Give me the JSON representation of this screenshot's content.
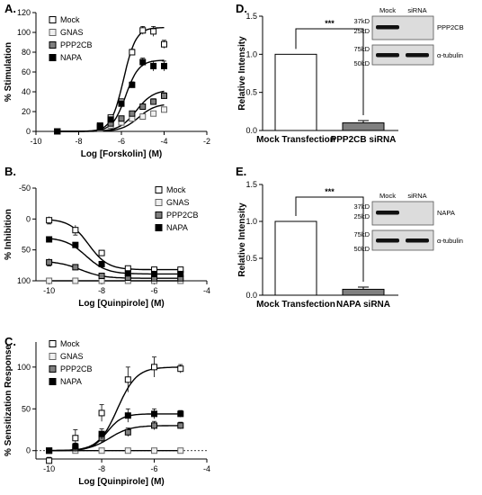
{
  "panels": {
    "A": {
      "label": "A."
    },
    "B": {
      "label": "B."
    },
    "C": {
      "label": "C."
    },
    "D": {
      "label": "D."
    },
    "E": {
      "label": "E."
    }
  },
  "chart_data": [
    {
      "id": "A",
      "type": "scatter",
      "curve": "sigmoidal fit",
      "xlabel": "Log [Forskolin] (M)",
      "ylabel": "% Stimulation",
      "xlim": [
        -10,
        -2
      ],
      "ylim": [
        0,
        120
      ],
      "xticks": [
        -10,
        -8,
        -6,
        -4,
        -2
      ],
      "yticks": [
        0,
        20,
        40,
        60,
        80,
        100,
        120
      ],
      "legend_position": "top-left",
      "x": [
        -9,
        -7,
        -6.5,
        -6,
        -5.5,
        -5,
        -4.5,
        -4
      ],
      "series": [
        {
          "name": "Mock",
          "marker": "open",
          "color": "#ffffff",
          "values": [
            0,
            6,
            14,
            30,
            80,
            102,
            101,
            88
          ],
          "err": [
            0,
            1,
            2,
            3,
            3,
            4,
            5,
            4
          ],
          "fit": {
            "bottom": 0,
            "top": 105,
            "logEC50": -5.9,
            "hill": 1.5
          }
        },
        {
          "name": "GNAS",
          "marker": "open-light",
          "color": "#f0f0f0",
          "values": [
            0,
            3,
            6,
            9,
            13,
            15,
            18,
            22
          ],
          "err": [
            0,
            1,
            1,
            1,
            2,
            2,
            2,
            2
          ],
          "fit": {
            "bottom": 0,
            "top": 28,
            "logEC50": -5.2,
            "hill": 1.1
          }
        },
        {
          "name": "PPP2CB",
          "marker": "gray",
          "color": "#7f7f7f",
          "values": [
            0,
            4,
            8,
            13,
            18,
            25,
            30,
            36
          ],
          "err": [
            0,
            1,
            1,
            2,
            2,
            2,
            3,
            3
          ],
          "fit": {
            "bottom": 0,
            "top": 42,
            "logEC50": -5.3,
            "hill": 1.1
          }
        },
        {
          "name": "NAPA",
          "marker": "black",
          "color": "#000000",
          "values": [
            0,
            5,
            12,
            28,
            47,
            70,
            66,
            66
          ],
          "err": [
            0,
            1,
            2,
            3,
            3,
            4,
            5,
            5
          ],
          "fit": {
            "bottom": 0,
            "top": 72,
            "logEC50": -5.8,
            "hill": 1.4
          }
        }
      ]
    },
    {
      "id": "B",
      "type": "scatter",
      "curve": "sigmoidal fit",
      "xlabel": "Log [Quinpirole] (M)",
      "ylabel": "% Inhibition",
      "xlim": [
        -10.5,
        -4
      ],
      "ylim": [
        -50,
        100
      ],
      "y_inverted": true,
      "reference_line": 100,
      "xticks": [
        -10,
        -8,
        -6,
        -4
      ],
      "yticks": [
        -50,
        0,
        50,
        100
      ],
      "legend_position": "top-right",
      "x": [
        -10,
        -9,
        -8,
        -7,
        -6,
        -5
      ],
      "series": [
        {
          "name": "Mock",
          "marker": "open",
          "color": "#ffffff",
          "values": [
            2,
            18,
            55,
            80,
            82,
            82
          ],
          "err": [
            6,
            8,
            4,
            3,
            2,
            2
          ],
          "fit": {
            "bottom": 0,
            "top": 82,
            "logEC50": -8.5,
            "hill": 1.2
          }
        },
        {
          "name": "GNAS",
          "marker": "open-light",
          "color": "#f0f0f0",
          "values": [
            100,
            100,
            100,
            100,
            100,
            100
          ],
          "err": [
            1,
            1,
            1,
            1,
            1,
            1
          ],
          "fit": {
            "bottom": 100,
            "top": 100,
            "logEC50": -8,
            "hill": 1
          }
        },
        {
          "name": "PPP2CB",
          "marker": "gray",
          "color": "#7f7f7f",
          "values": [
            70,
            78,
            92,
            95,
            96,
            96
          ],
          "err": [
            6,
            4,
            3,
            2,
            2,
            2
          ],
          "fit": {
            "bottom": 68,
            "top": 96,
            "logEC50": -8.8,
            "hill": 1
          }
        },
        {
          "name": "NAPA",
          "marker": "black",
          "color": "#000000",
          "values": [
            33,
            42,
            73,
            88,
            89,
            89
          ],
          "err": [
            3,
            3,
            3,
            2,
            2,
            2
          ],
          "fit": {
            "bottom": 30,
            "top": 89,
            "logEC50": -8.6,
            "hill": 1.1
          }
        }
      ]
    },
    {
      "id": "C",
      "type": "scatter",
      "curve": "sigmoidal fit",
      "xlabel": "Log [Quinpirole] (M)",
      "ylabel": "% Sensitization Response",
      "xlim": [
        -10.5,
        -4
      ],
      "ylim": [
        -10,
        130
      ],
      "reference_line": 0,
      "xticks": [
        -10,
        -8,
        -6,
        -4
      ],
      "yticks": [
        0,
        50,
        100
      ],
      "legend_position": "top-left",
      "x": [
        -10,
        -9,
        -8,
        -7,
        -6,
        -5
      ],
      "series": [
        {
          "name": "Mock",
          "marker": "open",
          "color": "#ffffff",
          "values": [
            -12,
            15,
            45,
            85,
            100,
            98
          ],
          "err": [
            4,
            10,
            10,
            15,
            12,
            5
          ],
          "fit": {
            "bottom": 0,
            "top": 100,
            "logEC50": -7.4,
            "hill": 1.2
          }
        },
        {
          "name": "GNAS",
          "marker": "open-light",
          "color": "#f0f0f0",
          "values": [
            0,
            0,
            0,
            0,
            0,
            0
          ],
          "err": [
            1,
            1,
            1,
            1,
            1,
            1
          ],
          "fit": {
            "bottom": 0,
            "top": 0,
            "logEC50": -8,
            "hill": 1
          }
        },
        {
          "name": "PPP2CB",
          "marker": "gray",
          "color": "#7f7f7f",
          "values": [
            0,
            3,
            15,
            22,
            30,
            30
          ],
          "err": [
            2,
            4,
            5,
            5,
            5,
            4
          ],
          "fit": {
            "bottom": 0,
            "top": 30,
            "logEC50": -7.7,
            "hill": 1.1
          }
        },
        {
          "name": "NAPA",
          "marker": "black",
          "color": "#000000",
          "values": [
            0,
            5,
            20,
            42,
            44,
            44
          ],
          "err": [
            2,
            4,
            6,
            8,
            6,
            4
          ],
          "fit": {
            "bottom": 0,
            "top": 44,
            "logEC50": -7.8,
            "hill": 1.5
          }
        }
      ]
    },
    {
      "id": "D",
      "type": "bar",
      "ylabel": "Relative Intensity",
      "ylim": [
        0,
        1.5
      ],
      "yticks": [
        0,
        0.5,
        1.0,
        1.5
      ],
      "categories": [
        "Mock Transfection",
        "PPP2CB siRNA"
      ],
      "values": [
        1.0,
        0.1
      ],
      "err": [
        0,
        0.03
      ],
      "bar_colors": [
        "#ffffff",
        "#808080"
      ],
      "significance": "***",
      "blot": {
        "headers": [
          "Mock",
          "siRNA"
        ],
        "target": "PPP2CB",
        "control": "α-tubulin",
        "markers_top": [
          "37kD",
          "25kD"
        ],
        "markers_bottom": [
          "75kD",
          "50kD"
        ]
      }
    },
    {
      "id": "E",
      "type": "bar",
      "ylabel": "Relative Intensity",
      "ylim": [
        0,
        1.5
      ],
      "yticks": [
        0,
        0.5,
        1.0,
        1.5
      ],
      "categories": [
        "Mock Transfection",
        "NAPA siRNA"
      ],
      "values": [
        1.0,
        0.08
      ],
      "err": [
        0,
        0.03
      ],
      "bar_colors": [
        "#ffffff",
        "#808080"
      ],
      "significance": "***",
      "blot": {
        "headers": [
          "Mock",
          "siRNA"
        ],
        "target": "NAPA",
        "control": "α-tubulin",
        "markers_top": [
          "37kD",
          "25kD"
        ],
        "markers_bottom": [
          "75kD",
          "50kD"
        ]
      }
    }
  ]
}
